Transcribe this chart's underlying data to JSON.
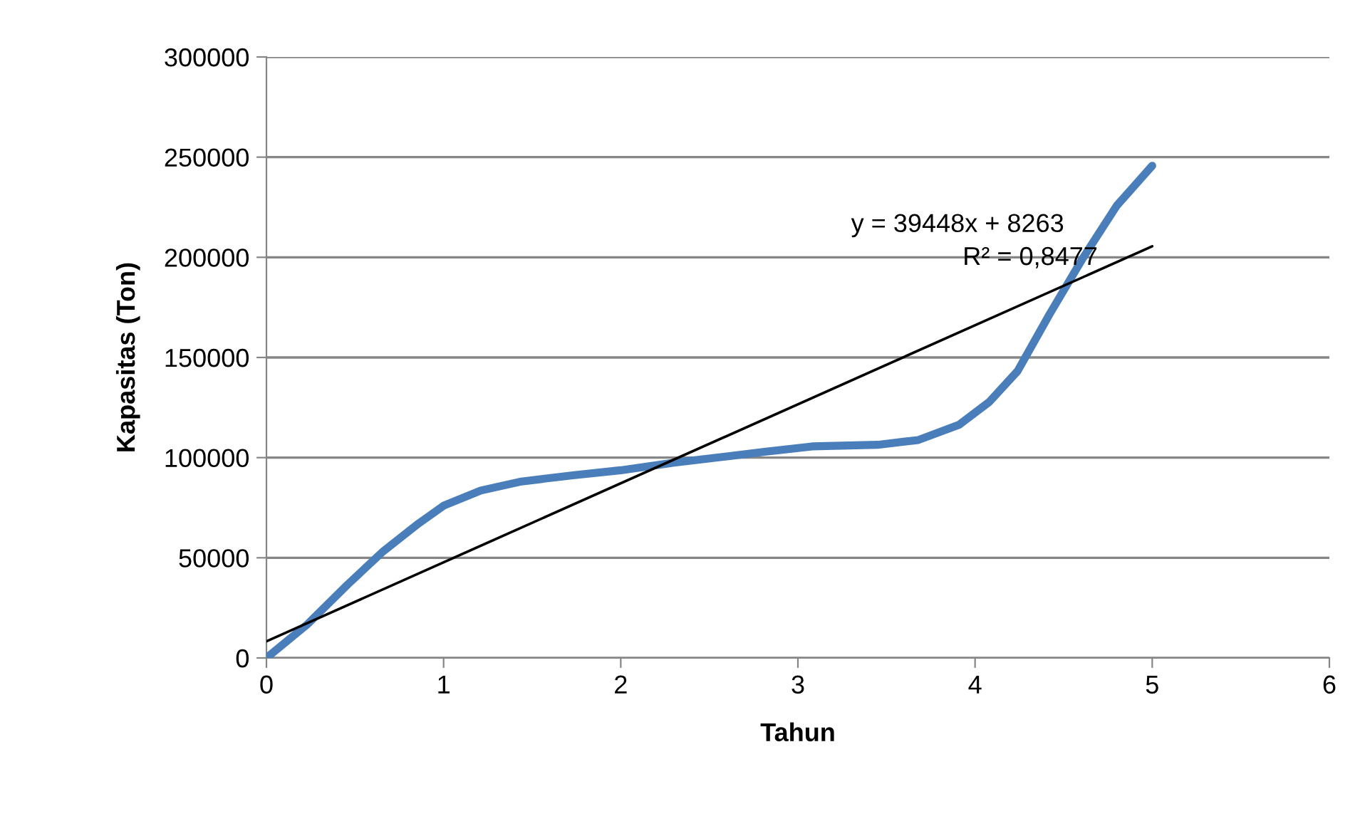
{
  "chart_data": {
    "type": "line",
    "xlabel": "Tahun",
    "ylabel": "Kapasitas (Ton)",
    "series": [
      {
        "color": "#4a7ebb",
        "x": [
          0,
          0.23,
          0.46,
          0.66,
          0.86,
          1,
          1.21,
          1.44,
          1.73,
          2,
          2.3,
          2.59,
          2.82,
          3.08,
          3.45,
          3.68,
          3.91,
          4.08,
          4.24,
          4.42,
          4.61,
          4.8,
          5
        ],
        "values": [
          0,
          16700,
          36800,
          53300,
          67200,
          76000,
          83600,
          88100,
          91200,
          93700,
          97500,
          100500,
          103000,
          105600,
          106400,
          108800,
          116400,
          127800,
          143200,
          171500,
          199800,
          225800,
          245700
        ]
      },
      {
        "type": "line",
        "color": "#000000",
        "x": [
          0,
          5
        ],
        "values": [
          8300,
          205500
        ]
      }
    ],
    "annotations": [
      "y = 39448x + 8263",
      "R² = 0,8477"
    ],
    "xlim": [
      0,
      6
    ],
    "xticks": [
      0,
      1,
      2,
      3,
      4,
      5,
      6
    ],
    "ylim": [
      0,
      300000
    ],
    "yticks": [
      0,
      50000,
      100000,
      150000,
      200000,
      250000,
      300000
    ],
    "grid": "y",
    "legend": false,
    "marker": "none"
  }
}
